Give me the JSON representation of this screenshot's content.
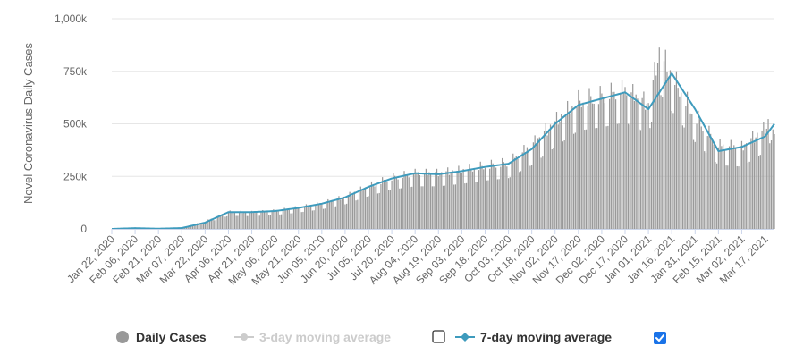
{
  "chart_data": {
    "type": "bar",
    "ylabel": "Novel Coronavirus Daily Cases",
    "ylim": [
      0,
      1000000
    ],
    "y_ticks": [
      {
        "value": 0,
        "label": "0"
      },
      {
        "value": 250000,
        "label": "250k"
      },
      {
        "value": 500000,
        "label": "500k"
      },
      {
        "value": 750000,
        "label": "750k"
      },
      {
        "value": 1000000,
        "label": "1,000k"
      }
    ],
    "x_start": "2020-01-22",
    "x_end": "2021-03-23",
    "x_ticks": [
      "Jan 22, 2020",
      "Feb 06, 2020",
      "Feb 21, 2020",
      "Mar 07, 2020",
      "Mar 22, 2020",
      "Apr 06, 2020",
      "Apr 21, 2020",
      "May 06, 2020",
      "May 21, 2020",
      "Jun 05, 2020",
      "Jun 20, 2020",
      "Jul 05, 2020",
      "Jul 20, 2020",
      "Aug 04, 2020",
      "Aug 19, 2020",
      "Sep 03, 2020",
      "Sep 18, 2020",
      "Oct 03, 2020",
      "Oct 18, 2020",
      "Nov 02, 2020",
      "Nov 17, 2020",
      "Dec 02, 2020",
      "Dec 17, 2020",
      "Jan 01, 2021",
      "Jan 16, 2021",
      "Jan 31, 2021",
      "Feb 15, 2021",
      "Mar 02, 2021",
      "Mar 17, 2021"
    ],
    "series": [
      {
        "name": "Daily Cases",
        "kind": "bar",
        "color": "#999999",
        "visible": true,
        "points": [
          [
            "2020-01-22",
            0
          ],
          [
            "2020-02-06",
            3500
          ],
          [
            "2020-02-21",
            1000
          ],
          [
            "2020-03-07",
            4000
          ],
          [
            "2020-03-22",
            35000
          ],
          [
            "2020-04-06",
            80000
          ],
          [
            "2020-04-21",
            78000
          ],
          [
            "2020-05-06",
            85000
          ],
          [
            "2020-05-21",
            100000
          ],
          [
            "2020-06-05",
            120000
          ],
          [
            "2020-06-20",
            150000
          ],
          [
            "2020-07-05",
            200000
          ],
          [
            "2020-07-20",
            240000
          ],
          [
            "2020-08-04",
            260000
          ],
          [
            "2020-08-19",
            260000
          ],
          [
            "2020-09-03",
            275000
          ],
          [
            "2020-09-18",
            295000
          ],
          [
            "2020-10-03",
            310000
          ],
          [
            "2020-10-18",
            390000
          ],
          [
            "2020-11-02",
            500000
          ],
          [
            "2020-11-17",
            600000
          ],
          [
            "2020-12-02",
            620000
          ],
          [
            "2020-12-17",
            650000
          ],
          [
            "2021-01-01",
            580000
          ],
          [
            "2021-01-08",
            830000
          ],
          [
            "2021-01-16",
            720000
          ],
          [
            "2021-01-31",
            530000
          ],
          [
            "2021-02-15",
            390000
          ],
          [
            "2021-03-02",
            380000
          ],
          [
            "2021-03-17",
            470000
          ],
          [
            "2021-03-21",
            540000
          ],
          [
            "2021-03-23",
            410000
          ]
        ]
      },
      {
        "name": "3-day moving average",
        "kind": "line",
        "color": "#cccccc",
        "visible": false
      },
      {
        "name": "7-day moving average",
        "kind": "line",
        "color": "#3e9bbd",
        "visible": true,
        "points": [
          [
            "2020-01-22",
            0
          ],
          [
            "2020-02-06",
            3500
          ],
          [
            "2020-02-21",
            1000
          ],
          [
            "2020-03-07",
            4000
          ],
          [
            "2020-03-22",
            30000
          ],
          [
            "2020-04-06",
            80000
          ],
          [
            "2020-04-21",
            80000
          ],
          [
            "2020-05-06",
            85000
          ],
          [
            "2020-05-21",
            100000
          ],
          [
            "2020-06-05",
            120000
          ],
          [
            "2020-06-20",
            150000
          ],
          [
            "2020-07-05",
            200000
          ],
          [
            "2020-07-20",
            240000
          ],
          [
            "2020-08-04",
            265000
          ],
          [
            "2020-08-19",
            260000
          ],
          [
            "2020-09-03",
            275000
          ],
          [
            "2020-09-18",
            295000
          ],
          [
            "2020-10-03",
            310000
          ],
          [
            "2020-10-18",
            380000
          ],
          [
            "2020-11-02",
            500000
          ],
          [
            "2020-11-17",
            590000
          ],
          [
            "2020-12-02",
            620000
          ],
          [
            "2020-12-17",
            650000
          ],
          [
            "2021-01-01",
            570000
          ],
          [
            "2021-01-16",
            740000
          ],
          [
            "2021-01-31",
            570000
          ],
          [
            "2021-02-15",
            370000
          ],
          [
            "2021-03-02",
            390000
          ],
          [
            "2021-03-17",
            440000
          ],
          [
            "2021-03-23",
            500000
          ]
        ]
      }
    ],
    "legend": {
      "placement": "bottom-center",
      "items": [
        {
          "label": "Daily Cases",
          "color": "#999999",
          "text_color": "#333333",
          "marker": "circle",
          "checkbox": null
        },
        {
          "label": "3-day moving average",
          "color": "#cccccc",
          "text_color": "#cccccc",
          "marker": "line-dot",
          "checkbox": false
        },
        {
          "label": "7-day moving average",
          "color": "#3e9bbd",
          "text_color": "#333333",
          "marker": "line-diamond",
          "checkbox": true
        }
      ]
    },
    "grid": {
      "y": true,
      "x": false,
      "color": "#e6e6e6"
    },
    "checkbox_color": "#1a73e8"
  }
}
